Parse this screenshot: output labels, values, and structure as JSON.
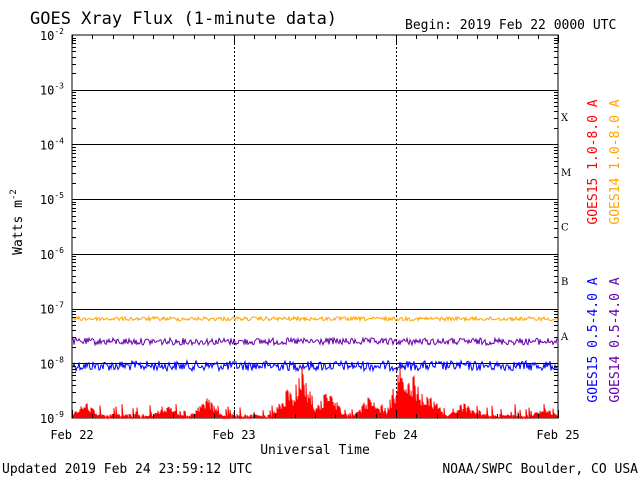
{
  "title": "GOES Xray Flux (1-minute data)",
  "begin": "Begin:  2019 Feb 22 0000 UTC",
  "updated": "Updated 2019 Feb 24 23:59:12 UTC",
  "credit": "NOAA/SWPC Boulder, CO USA",
  "colors": {
    "goes15_long": "#ff0000",
    "goes14_long": "#ffa500",
    "goes15_short": "#0000ff",
    "goes14_short": "#6600aa"
  },
  "chart_data": {
    "type": "line",
    "log_y": true,
    "ylim": [
      1e-09,
      0.01
    ],
    "xlim": [
      "2019-02-22",
      "2019-02-25"
    ],
    "xlabel": "Universal Time",
    "ylabel": "Watts m-2",
    "ylabel_base": "Watts m",
    "ylabel_exp": "-2",
    "grid": true,
    "x_ticks": [
      "Feb 22",
      "Feb 23",
      "Feb 24",
      "Feb 25"
    ],
    "y_ticks": [
      {
        "base": "10",
        "exp": "-9"
      },
      {
        "base": "10",
        "exp": "-8"
      },
      {
        "base": "10",
        "exp": "-7"
      },
      {
        "base": "10",
        "exp": "-6"
      },
      {
        "base": "10",
        "exp": "-5"
      },
      {
        "base": "10",
        "exp": "-4"
      },
      {
        "base": "10",
        "exp": "-3"
      },
      {
        "base": "10",
        "exp": "-2"
      }
    ],
    "flare_classes": [
      {
        "label": "A",
        "value": 1e-08
      },
      {
        "label": "B",
        "value": 1e-07
      },
      {
        "label": "C",
        "value": 1e-06
      },
      {
        "label": "M",
        "value": 1e-05
      },
      {
        "label": "X",
        "value": 0.0001
      }
    ],
    "series": [
      {
        "name": "GOES15 1.0-8.0 A",
        "color": "#ff0000",
        "legend_group": "top",
        "approx_level": 1e-09,
        "spikes": [
          [
            "2019-02-22T02:00",
            2e-09
          ],
          [
            "2019-02-22T14:00",
            1.8e-09
          ],
          [
            "2019-02-22T20:00",
            2.5e-09
          ],
          [
            "2019-02-23T08:00",
            4e-09
          ],
          [
            "2019-02-23T10:00",
            1e-08
          ],
          [
            "2019-02-23T14:00",
            4e-09
          ],
          [
            "2019-02-23T20:00",
            2.5e-09
          ],
          [
            "2019-02-24T01:00",
            1.5e-08
          ],
          [
            "2019-02-24T02:30",
            8e-09
          ],
          [
            "2019-02-24T05:00",
            3e-09
          ],
          [
            "2019-02-24T10:00",
            2e-09
          ],
          [
            "2019-02-24T22:00",
            1.6e-09
          ]
        ]
      },
      {
        "name": "GOES14 1.0-8.0 A",
        "color": "#ffa500",
        "legend_group": "top",
        "approx_level": 6.5e-08
      },
      {
        "name": "GOES15 0.5-4.0 A",
        "color": "#0000ff",
        "legend_group": "bottom",
        "approx_level": 9e-09
      },
      {
        "name": "GOES14 0.5-4.0 A",
        "color": "#6600aa",
        "legend_group": "bottom",
        "approx_level": 2.5e-08
      }
    ]
  }
}
